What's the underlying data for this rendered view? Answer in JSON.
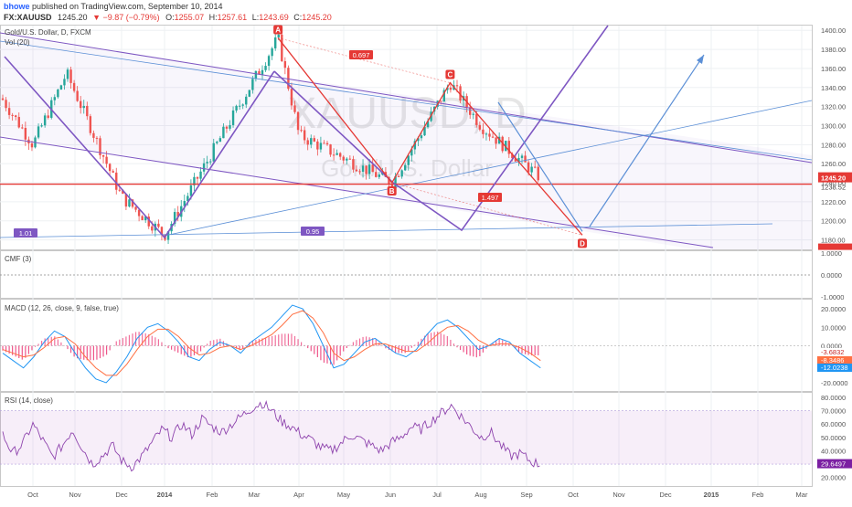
{
  "header": {
    "author": "bhowe",
    "published": "published on TradingView.com, September 10, 2014",
    "symbol": "FX:XAUUSD",
    "last": "1245.20",
    "change": "▼ −9.87 (−0.79%)",
    "ohlc_prefix": "O:",
    "open": "1255.07",
    "high_prefix": "H:",
    "high": "1257.61",
    "low_prefix": "L:",
    "low": "1243.69",
    "close_prefix": "C:",
    "close": "1245.20"
  },
  "watermark": {
    "symbol": "XAUUSD, D",
    "name": "Gold/U.S. Dollar"
  },
  "colors": {
    "up": "#26a69a",
    "down": "#ef5350",
    "harmonic": "#e53935",
    "channel": "#7e57c2",
    "trend": "#5b8fd6",
    "macd": "#2196f3",
    "signal": "#ff7043",
    "rsi": "#8e44ad"
  },
  "chart_data": [
    {
      "type": "candlestick",
      "title": "Gold/U.S. Dollar, D, FXCM",
      "indicator": "Vol (20)",
      "ylim": [
        1170,
        1405
      ],
      "y_ticks": [
        "1400.00",
        "1380.00",
        "1360.00",
        "1340.00",
        "1320.00",
        "1300.00",
        "1280.00",
        "1260.00",
        "1240.00",
        "1220.00",
        "1200.00",
        "1180.00"
      ],
      "price_label": "1245.20",
      "second_label": "1238.52",
      "horizontal_level": 1238.5,
      "points": [
        {
          "label": "A",
          "x": "Mar 17, 2014",
          "y": 1392
        },
        {
          "label": "B",
          "x": "Jun 2, 2014",
          "y": 1240
        },
        {
          "label": "C",
          "x": "Jul 10, 2014",
          "y": 1345
        },
        {
          "label": "D",
          "x": "Oct 7, 2014",
          "y": 1185
        }
      ],
      "ratios": [
        "0.697",
        "1.497",
        "1.01",
        "0.95"
      ],
      "key_closes": [
        {
          "x": "Sep 2013",
          "y": 1360
        },
        {
          "x": "Oct 2013",
          "y": 1280
        },
        {
          "x": "Oct 25, 2013",
          "y": 1355
        },
        {
          "x": "Dec 2013",
          "y": 1225
        },
        {
          "x": "Dec 31, 2013",
          "y": 1185
        },
        {
          "x": "Mar 17, 2014",
          "y": 1392
        },
        {
          "x": "Apr 2014",
          "y": 1290
        },
        {
          "x": "Jun 2, 2014",
          "y": 1240
        },
        {
          "x": "Jul 10, 2014",
          "y": 1345
        },
        {
          "x": "Aug 2014",
          "y": 1300
        },
        {
          "x": "Sep 10, 2014",
          "y": 1245
        }
      ]
    },
    {
      "type": "line",
      "title": "CMF (3)",
      "ylim": [
        -1,
        1
      ],
      "y_ticks": [
        "1.0000",
        "0.0000",
        "-1.0000"
      ]
    },
    {
      "type": "line",
      "title": "MACD (12, 26, close, 9, false, true)",
      "ylim": [
        -24,
        24
      ],
      "y_ticks": [
        "20.0000",
        "10.0000",
        "0.0000",
        "-10.0000",
        "-20.0000"
      ],
      "last_values": [
        "-3.6832",
        "-8.3486",
        "-12.0238"
      ],
      "series": [
        {
          "name": "MACD",
          "values": [
            -4,
            -8,
            -12,
            -6,
            2,
            8,
            5,
            -4,
            -12,
            -18,
            -20,
            -14,
            -6,
            4,
            10,
            12,
            8,
            2,
            -6,
            -8,
            -2,
            2,
            0,
            -4,
            2,
            6,
            10,
            16,
            22,
            20,
            12,
            0,
            -12,
            -10,
            -4,
            2,
            4,
            0,
            -4,
            -6,
            -2,
            6,
            12,
            14,
            10,
            4,
            -2,
            0,
            4,
            2,
            -4,
            -8,
            -12
          ]
        },
        {
          "name": "Signal",
          "values": [
            -2,
            -4,
            -6,
            -5,
            -1,
            4,
            5,
            1,
            -6,
            -12,
            -16,
            -16,
            -10,
            -2,
            5,
            9,
            9,
            5,
            -1,
            -5,
            -4,
            -1,
            0,
            -2,
            0,
            3,
            6,
            11,
            17,
            19,
            15,
            7,
            -4,
            -8,
            -6,
            -2,
            1,
            1,
            -1,
            -3,
            -3,
            1,
            6,
            10,
            11,
            8,
            3,
            0,
            1,
            1,
            -1,
            -4,
            -8
          ]
        }
      ]
    },
    {
      "type": "line",
      "title": "RSI (14, close)",
      "ylim": [
        15,
        82
      ],
      "y_ticks": [
        "80.0000",
        "70.0000",
        "60.0000",
        "50.0000",
        "40.0000",
        "30.0000",
        "20.0000"
      ],
      "last_value": "29.6497",
      "band": [
        30,
        70
      ],
      "series": [
        {
          "name": "RSI",
          "values": [
            52,
            38,
            45,
            60,
            48,
            35,
            44,
            56,
            42,
            30,
            36,
            44,
            32,
            28,
            36,
            46,
            56,
            50,
            60,
            52,
            64,
            58,
            54,
            60,
            66,
            72,
            76,
            70,
            62,
            58,
            52,
            48,
            42,
            40,
            46,
            52,
            48,
            44,
            40,
            46,
            50,
            58,
            56,
            62,
            68,
            74,
            66,
            58,
            50,
            54,
            44,
            36,
            38,
            32,
            29.6
          ]
        }
      ]
    }
  ],
  "xaxis": {
    "labels": [
      "Oct",
      "Nov",
      "Dec",
      "2014",
      "Feb",
      "Mar",
      "Apr",
      "May",
      "Jun",
      "Jul",
      "Aug",
      "Sep",
      "Oct",
      "Nov",
      "Dec",
      "2015",
      "Feb",
      "Mar"
    ]
  }
}
